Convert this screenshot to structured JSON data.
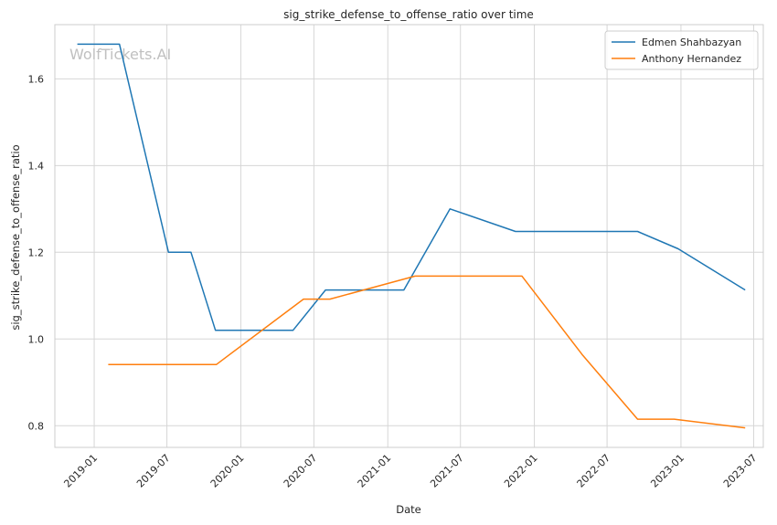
{
  "chart_data": {
    "type": "line",
    "title": "sig_strike_defense_to_offense_ratio over time",
    "xlabel": "Date",
    "ylabel": "sig_strike_defense_to_offense_ratio",
    "watermark": "WolfTickets.AI",
    "x_ticks": [
      "2019-01",
      "2019-07",
      "2020-01",
      "2020-07",
      "2021-01",
      "2021-07",
      "2022-01",
      "2022-07",
      "2023-01",
      "2023-07"
    ],
    "y_ticks": [
      "0.8",
      "1.0",
      "1.2",
      "1.4",
      "1.6"
    ],
    "xlim": [
      "2018-09-25",
      "2023-07-25"
    ],
    "ylim": [
      0.75,
      1.725
    ],
    "grid": true,
    "legend_position": "top-right",
    "series": [
      {
        "name": "Edmen Shahbazyan",
        "color": "#1f77b4",
        "points": [
          {
            "x": "2018-11-20",
            "y": 1.68
          },
          {
            "x": "2019-03-05",
            "y": 1.68
          },
          {
            "x": "2019-07-05",
            "y": 1.2
          },
          {
            "x": "2019-08-30",
            "y": 1.2
          },
          {
            "x": "2019-10-30",
            "y": 1.02
          },
          {
            "x": "2020-05-10",
            "y": 1.02
          },
          {
            "x": "2020-07-30",
            "y": 1.113
          },
          {
            "x": "2021-02-10",
            "y": 1.113
          },
          {
            "x": "2021-06-05",
            "y": 1.3
          },
          {
            "x": "2021-11-15",
            "y": 1.248
          },
          {
            "x": "2022-09-15",
            "y": 1.248
          },
          {
            "x": "2022-12-25",
            "y": 1.208
          },
          {
            "x": "2023-06-10",
            "y": 1.113
          }
        ]
      },
      {
        "name": "Anthony Hernandez",
        "color": "#ff7f0e",
        "points": [
          {
            "x": "2019-02-05",
            "y": 0.941
          },
          {
            "x": "2019-11-01",
            "y": 0.941
          },
          {
            "x": "2020-06-05",
            "y": 1.092
          },
          {
            "x": "2020-08-10",
            "y": 1.092
          },
          {
            "x": "2021-03-10",
            "y": 1.145
          },
          {
            "x": "2021-12-01",
            "y": 1.145
          },
          {
            "x": "2022-05-01",
            "y": 0.963
          },
          {
            "x": "2022-09-15",
            "y": 0.815
          },
          {
            "x": "2022-12-15",
            "y": 0.815
          },
          {
            "x": "2023-06-10",
            "y": 0.795
          }
        ]
      }
    ]
  }
}
